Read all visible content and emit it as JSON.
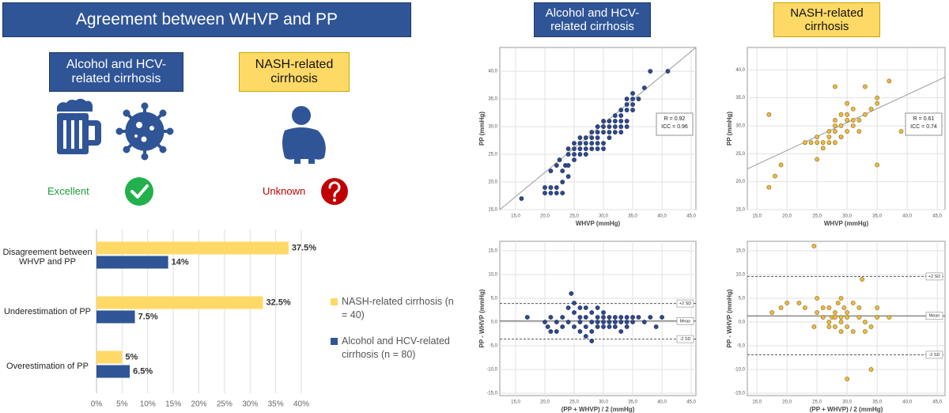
{
  "title": "Agreement between WHVP and PP",
  "groups": [
    {
      "label": "Alcohol and HCV-related cirrhosis",
      "verdict": "Excellent"
    },
    {
      "label": "NASH-related cirrhosis",
      "verdict": "Unknown"
    }
  ],
  "chart_data": [
    {
      "type": "bar",
      "orientation": "horizontal",
      "categories": [
        "Disagreement between WHVP and PP",
        "Underestimation of PP",
        "Overestimation of PP"
      ],
      "series": [
        {
          "name": "NASH-related cirrhosis (n = 40)",
          "color": "#ffd966",
          "values": [
            37.5,
            32.5,
            5
          ],
          "value_labels": [
            "37.5%",
            "32.5%",
            "5%"
          ]
        },
        {
          "name": "Alcohol and HCV-related cirrhosis (n = 80)",
          "color": "#2f5597",
          "values": [
            14,
            7.5,
            6.5
          ],
          "value_labels": [
            "14%",
            "7.5%",
            "6.5%"
          ]
        }
      ],
      "xlim": [
        0,
        40
      ],
      "xticks": [
        {
          "value": 0,
          "label": "0%"
        },
        {
          "value": 5,
          "label": "5%"
        },
        {
          "value": 10,
          "label": "10%"
        },
        {
          "value": 15,
          "label": "15%"
        },
        {
          "value": 20,
          "label": "20%"
        },
        {
          "value": 25,
          "label": "25%"
        },
        {
          "value": 30,
          "label": "30%"
        },
        {
          "value": 35,
          "label": "35%"
        },
        {
          "value": 40,
          "label": "40%"
        }
      ],
      "grid": true,
      "legend": "right"
    },
    {
      "type": "scatter",
      "xlabel": "WHVP (mmHg)",
      "ylabel": "PP (mmHg)",
      "color": "#2f4a8a",
      "edge_color": "#1a2a55",
      "x": [
        16,
        20,
        20,
        21,
        21,
        21,
        22,
        22,
        22,
        22.5,
        23,
        23,
        23,
        23.5,
        24,
        24,
        24,
        24,
        25,
        25,
        25,
        25,
        26,
        26,
        26,
        26,
        27,
        27,
        27,
        27,
        28,
        28,
        28,
        28,
        29,
        29,
        29,
        29,
        29,
        30,
        30,
        30,
        30,
        30,
        31,
        31,
        31,
        31,
        32,
        32,
        32,
        32,
        33,
        33,
        33,
        33,
        34,
        34,
        34,
        34,
        35,
        35,
        35,
        35,
        36,
        37,
        38,
        41,
        34,
        33
      ],
      "y": [
        17,
        19,
        18,
        18,
        19,
        22,
        18,
        19,
        23,
        24,
        18,
        20,
        22,
        23,
        21,
        23,
        25,
        26,
        24,
        25,
        26,
        27,
        25,
        26,
        27,
        28,
        25,
        26,
        27,
        28,
        26,
        27,
        28,
        29,
        26,
        27,
        28,
        29,
        30,
        26,
        27,
        29,
        30,
        31,
        28,
        29,
        30,
        31,
        29,
        30,
        31,
        32,
        30,
        31,
        32,
        33,
        31,
        33,
        34,
        35,
        33,
        34,
        35,
        36,
        35,
        37,
        40,
        40,
        30,
        29
      ],
      "fit_line": {
        "x": [
          12.3,
          45.8
        ],
        "y": [
          15,
          44.3
        ]
      },
      "annotations": [
        "R = 0.92",
        "ICC = 0.96"
      ],
      "xlim": [
        12.3,
        45.8
      ],
      "ylim": [
        15,
        44.3
      ],
      "xticks": [
        {
          "value": 15,
          "label": "15,0"
        },
        {
          "value": 20,
          "label": "20,0"
        },
        {
          "value": 25,
          "label": "25,0"
        },
        {
          "value": 30,
          "label": "30,0"
        },
        {
          "value": 35,
          "label": "35,0"
        },
        {
          "value": 40,
          "label": "40,0"
        },
        {
          "value": 45,
          "label": "45,0"
        }
      ],
      "yticks": [
        {
          "value": 15,
          "label": "15,0"
        },
        {
          "value": 20,
          "label": "20,0"
        },
        {
          "value": 25,
          "label": "25,0"
        },
        {
          "value": 30,
          "label": "30,0"
        },
        {
          "value": 35,
          "label": "35,0"
        },
        {
          "value": 40,
          "label": "40,0"
        }
      ],
      "grid": true
    },
    {
      "type": "scatter",
      "xlabel": "WHVP (mmHg)",
      "ylabel": "PP (mmHg)",
      "color": "#e9b949",
      "edge_color": "#8a6a10",
      "x": [
        17,
        17,
        18,
        19,
        23,
        24,
        25,
        25,
        25,
        26,
        26,
        27,
        27,
        28,
        28,
        28,
        28,
        28,
        29,
        29,
        29,
        30,
        30,
        30,
        30,
        31,
        31,
        32,
        32,
        33,
        33,
        34,
        35,
        35,
        35,
        37,
        39,
        29,
        27,
        31
      ],
      "y": [
        32,
        19,
        21,
        23,
        27,
        27,
        27,
        28,
        24,
        26,
        27,
        27,
        29,
        37,
        29,
        30,
        31,
        27,
        28,
        30,
        32,
        29,
        31,
        32,
        34,
        30,
        33,
        29,
        31,
        32,
        37,
        33,
        34,
        35,
        23,
        38,
        29,
        28,
        28,
        31
      ],
      "fit_line": {
        "x": [
          13.4,
          46.3
        ],
        "y": [
          22.3,
          38.7
        ]
      },
      "annotations": [
        "R = 0.61",
        "ICC = 0.74"
      ],
      "xlim": [
        13.4,
        46.3
      ],
      "ylim": [
        15,
        44
      ],
      "xticks": [
        {
          "value": 15,
          "label": "15,0"
        },
        {
          "value": 20,
          "label": "20,0"
        },
        {
          "value": 25,
          "label": "25,0"
        },
        {
          "value": 30,
          "label": "30,0"
        },
        {
          "value": 35,
          "label": "35,0"
        },
        {
          "value": 40,
          "label": "40,0"
        },
        {
          "value": 45,
          "label": "45,0"
        }
      ],
      "yticks": [
        {
          "value": 15,
          "label": "15,0"
        },
        {
          "value": 20,
          "label": "20,0"
        },
        {
          "value": 25,
          "label": "25,0"
        },
        {
          "value": 30,
          "label": "30,0"
        },
        {
          "value": 35,
          "label": "35,0"
        },
        {
          "value": 40,
          "label": "40,0"
        }
      ],
      "grid": true
    },
    {
      "type": "scatter",
      "xlabel": "(PP + WHVP) / 2 (mmHg)",
      "ylabel": "PP - WHVP (mmHg)",
      "color": "#2f4a8a",
      "edge_color": "#1a2a55",
      "x": [
        17,
        20,
        20.5,
        21,
        21,
        22,
        22,
        23,
        23,
        24,
        24,
        24.5,
        25,
        25,
        25,
        26,
        26,
        26,
        26,
        27,
        27,
        27,
        27,
        28,
        28,
        28,
        28,
        29,
        29,
        29,
        29,
        30,
        30,
        30,
        30,
        31,
        31,
        31,
        32,
        32,
        32,
        33,
        33,
        33,
        34,
        34,
        34,
        35,
        35,
        36,
        37,
        38,
        40,
        39
      ],
      "y": [
        1,
        0,
        -1,
        -2,
        1,
        -2,
        0,
        -1,
        1,
        3,
        0,
        6,
        -1,
        2,
        4,
        0,
        1,
        3,
        -2,
        1,
        3,
        -1,
        -3,
        0,
        2,
        -2,
        -4,
        0,
        1,
        -1,
        3,
        0,
        1,
        -1,
        2,
        0,
        1,
        -1,
        0,
        1,
        -1,
        0,
        1,
        -2,
        0,
        1,
        -1,
        0,
        1,
        1,
        0,
        1,
        1,
        -1
      ],
      "reference_lines": [
        {
          "label": "+2 SD",
          "value": 3.9,
          "dashed": true
        },
        {
          "label": "Mean",
          "value": 0.2,
          "dashed": false
        },
        {
          "label": "-2 SD",
          "value": -3.6,
          "dashed": true
        }
      ],
      "xlim": [
        12.3,
        45.8
      ],
      "ylim": [
        -15.5,
        17
      ],
      "xticks": [
        {
          "value": 15,
          "label": "15,0"
        },
        {
          "value": 20,
          "label": "20,0"
        },
        {
          "value": 25,
          "label": "25,0"
        },
        {
          "value": 30,
          "label": "30,0"
        },
        {
          "value": 35,
          "label": "35,0"
        },
        {
          "value": 40,
          "label": "40,0"
        },
        {
          "value": 45,
          "label": "45,0"
        }
      ],
      "yticks": [
        {
          "value": -15,
          "label": "-15,0"
        },
        {
          "value": -10,
          "label": "-10,0"
        },
        {
          "value": -5,
          "label": "-5,0"
        },
        {
          "value": 0,
          "label": "0,0"
        },
        {
          "value": 5,
          "label": "5,0"
        },
        {
          "value": 10,
          "label": "10,0"
        },
        {
          "value": 15,
          "label": "15,0"
        }
      ],
      "grid": true
    },
    {
      "type": "scatter",
      "xlabel": "(PP + WHVP) / 2 (mmHg)",
      "ylabel": "PP - WHVP (mmHg)",
      "color": "#e9b949",
      "edge_color": "#8a6a10",
      "x": [
        17.5,
        19,
        20,
        22,
        23,
        24.5,
        24.5,
        25,
        25,
        26,
        26,
        27,
        27,
        27.5,
        28,
        28,
        28,
        28.5,
        29,
        29,
        29,
        29,
        29.5,
        30,
        30,
        30,
        31,
        31,
        32,
        32,
        32.5,
        33,
        33,
        34,
        34,
        35,
        35,
        30,
        37,
        27
      ],
      "y": [
        2,
        3,
        4,
        4,
        3,
        16,
        -1,
        5,
        2,
        3,
        1,
        3,
        0,
        1,
        1,
        -1,
        2,
        4,
        5,
        1,
        0,
        -2,
        3,
        2,
        -1,
        1,
        4,
        -2,
        1,
        3,
        9,
        0,
        -2,
        -1,
        -10,
        3,
        1,
        -12,
        1,
        -1
      ],
      "reference_lines": [
        {
          "label": "+2 SD",
          "value": 9.6,
          "dashed": true
        },
        {
          "label": "Mean",
          "value": 1.3,
          "dashed": false
        },
        {
          "label": "-2 SD",
          "value": -6.9,
          "dashed": true
        }
      ],
      "xlim": [
        13.4,
        46.3
      ],
      "ylim": [
        -15.5,
        17
      ],
      "xticks": [
        {
          "value": 15,
          "label": "15,0"
        },
        {
          "value": 20,
          "label": "20,0"
        },
        {
          "value": 25,
          "label": "25,0"
        },
        {
          "value": 30,
          "label": "30,0"
        },
        {
          "value": 35,
          "label": "35,0"
        },
        {
          "value": 40,
          "label": "40,0"
        },
        {
          "value": 45,
          "label": "45,0"
        }
      ],
      "yticks": [
        {
          "value": -15,
          "label": "-15,0"
        },
        {
          "value": -10,
          "label": "-10,0"
        },
        {
          "value": -5,
          "label": "-5,0"
        },
        {
          "value": 0,
          "label": "0,0"
        },
        {
          "value": 5,
          "label": "5,0"
        },
        {
          "value": 10,
          "label": "10,0"
        },
        {
          "value": 15,
          "label": "15,0"
        }
      ],
      "grid": true
    }
  ]
}
